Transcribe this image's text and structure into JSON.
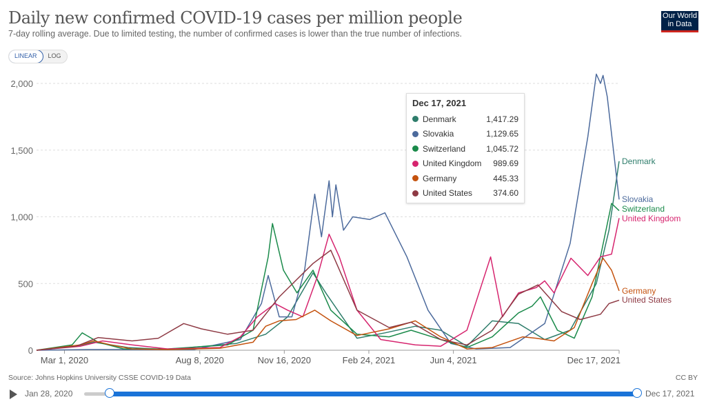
{
  "header": {
    "title": "Daily new confirmed COVID-19 cases per million people",
    "subtitle": "7-day rolling average. Due to limited testing, the number of confirmed cases is lower than the true number of infections.",
    "logo_line1": "Our World",
    "logo_line2": "in Data"
  },
  "scale_toggle": {
    "linear_label": "LINEAR",
    "log_label": "LOG",
    "selected": "LINEAR"
  },
  "tooltip": {
    "date": "Dec 17, 2021",
    "rows": [
      {
        "name": "Denmark",
        "value": "1,417.29",
        "color": "#2e7d6b"
      },
      {
        "name": "Slovakia",
        "value": "1,129.65",
        "color": "#4c6a9c"
      },
      {
        "name": "Switzerland",
        "value": "1,045.72",
        "color": "#1a8a4a"
      },
      {
        "name": "United Kingdom",
        "value": "989.69",
        "color": "#d6246e"
      },
      {
        "name": "Germany",
        "value": "445.33",
        "color": "#c4520e"
      },
      {
        "name": "United States",
        "value": "374.60",
        "color": "#8e3a44"
      }
    ]
  },
  "footer": {
    "source": "Source: Johns Hopkins University CSSE COVID-19 Data",
    "license": "CC BY"
  },
  "timeline": {
    "start_label": "Jan 28, 2020",
    "end_label": "Dec 17, 2021",
    "play_icon": "play-icon"
  },
  "chart_data": {
    "type": "line",
    "title": "Daily new confirmed COVID-19 cases per million people",
    "subtitle": "7-day rolling average. Due to limited testing, the number of confirmed cases is lower than the true number of infections.",
    "xlabel": "",
    "ylabel": "",
    "x_range": [
      "2020-01-28",
      "2021-12-17"
    ],
    "ylim": [
      0,
      2100
    ],
    "y_ticks": [
      0,
      500,
      1000,
      1500,
      2000
    ],
    "y_tick_labels": [
      "0",
      "500",
      "1,000",
      "1,500",
      "2,000"
    ],
    "x_ticks": [
      "2020-03-01",
      "2020-08-08",
      "2020-11-16",
      "2021-02-24",
      "2021-06-04",
      "2021-12-17"
    ],
    "x_tick_labels": [
      "Mar 1, 2020",
      "Aug 8, 2020",
      "Nov 16, 2020",
      "Feb 24, 2021",
      "Jun 4, 2021",
      "Dec 17, 2021"
    ],
    "grid": "horizontal-dashed",
    "legend": "right-end-labels",
    "series": [
      {
        "name": "Denmark",
        "color": "#2e7d6b",
        "points": [
          [
            "2020-01-28",
            0
          ],
          [
            "2020-03-15",
            30
          ],
          [
            "2020-04-05",
            60
          ],
          [
            "2020-05-15",
            20
          ],
          [
            "2020-07-01",
            5
          ],
          [
            "2020-09-20",
            50
          ],
          [
            "2020-10-25",
            120
          ],
          [
            "2020-11-20",
            250
          ],
          [
            "2020-12-20",
            580
          ],
          [
            "2021-01-05",
            420
          ],
          [
            "2021-02-10",
            90
          ],
          [
            "2021-03-15",
            130
          ],
          [
            "2021-04-20",
            180
          ],
          [
            "2021-05-20",
            150
          ],
          [
            "2021-06-20",
            30
          ],
          [
            "2021-07-20",
            220
          ],
          [
            "2021-08-20",
            200
          ],
          [
            "2021-09-20",
            80
          ],
          [
            "2021-10-20",
            150
          ],
          [
            "2021-11-20",
            500
          ],
          [
            "2021-12-05",
            900
          ],
          [
            "2021-12-17",
            1417
          ]
        ]
      },
      {
        "name": "Slovakia",
        "color": "#4c6a9c",
        "points": [
          [
            "2020-01-28",
            0
          ],
          [
            "2020-04-01",
            5
          ],
          [
            "2020-08-01",
            5
          ],
          [
            "2020-09-25",
            80
          ],
          [
            "2020-10-20",
            350
          ],
          [
            "2020-10-28",
            560
          ],
          [
            "2020-11-10",
            250
          ],
          [
            "2020-11-25",
            250
          ],
          [
            "2020-12-10",
            600
          ],
          [
            "2020-12-22",
            1170
          ],
          [
            "2020-12-30",
            850
          ],
          [
            "2021-01-08",
            1270
          ],
          [
            "2021-01-12",
            1000
          ],
          [
            "2021-01-16",
            1240
          ],
          [
            "2021-01-25",
            900
          ],
          [
            "2021-02-05",
            1000
          ],
          [
            "2021-02-25",
            980
          ],
          [
            "2021-03-15",
            1030
          ],
          [
            "2021-04-10",
            700
          ],
          [
            "2021-05-05",
            300
          ],
          [
            "2021-06-01",
            50
          ],
          [
            "2021-07-01",
            10
          ],
          [
            "2021-08-10",
            20
          ],
          [
            "2021-09-20",
            200
          ],
          [
            "2021-10-20",
            800
          ],
          [
            "2021-11-10",
            1600
          ],
          [
            "2021-11-20",
            2070
          ],
          [
            "2021-11-25",
            2000
          ],
          [
            "2021-11-28",
            2060
          ],
          [
            "2021-12-03",
            1900
          ],
          [
            "2021-12-17",
            1130
          ]
        ]
      },
      {
        "name": "Switzerland",
        "color": "#1a8a4a",
        "points": [
          [
            "2020-01-28",
            0
          ],
          [
            "2020-03-10",
            40
          ],
          [
            "2020-03-22",
            130
          ],
          [
            "2020-04-10",
            60
          ],
          [
            "2020-05-10",
            10
          ],
          [
            "2020-07-01",
            10
          ],
          [
            "2020-09-10",
            40
          ],
          [
            "2020-10-10",
            150
          ],
          [
            "2020-10-28",
            700
          ],
          [
            "2020-11-02",
            950
          ],
          [
            "2020-11-15",
            600
          ],
          [
            "2020-12-01",
            430
          ],
          [
            "2020-12-20",
            600
          ],
          [
            "2021-01-10",
            300
          ],
          [
            "2021-02-10",
            120
          ],
          [
            "2021-03-20",
            100
          ],
          [
            "2021-04-15",
            150
          ],
          [
            "2021-05-20",
            80
          ],
          [
            "2021-06-20",
            20
          ],
          [
            "2021-07-20",
            100
          ],
          [
            "2021-08-20",
            280
          ],
          [
            "2021-09-05",
            330
          ],
          [
            "2021-09-15",
            400
          ],
          [
            "2021-10-05",
            150
          ],
          [
            "2021-10-25",
            90
          ],
          [
            "2021-11-15",
            400
          ],
          [
            "2021-12-08",
            1100
          ],
          [
            "2021-12-17",
            1046
          ]
        ]
      },
      {
        "name": "United Kingdom",
        "color": "#d6246e",
        "points": [
          [
            "2020-01-28",
            0
          ],
          [
            "2020-03-20",
            30
          ],
          [
            "2020-04-15",
            70
          ],
          [
            "2020-05-20",
            40
          ],
          [
            "2020-07-01",
            10
          ],
          [
            "2020-09-01",
            20
          ],
          [
            "2020-09-25",
            100
          ],
          [
            "2020-10-15",
            250
          ],
          [
            "2020-11-05",
            350
          ],
          [
            "2020-11-20",
            300
          ],
          [
            "2020-12-08",
            250
          ],
          [
            "2020-12-25",
            550
          ],
          [
            "2021-01-08",
            870
          ],
          [
            "2021-01-20",
            700
          ],
          [
            "2021-02-10",
            300
          ],
          [
            "2021-03-10",
            80
          ],
          [
            "2021-04-20",
            40
          ],
          [
            "2021-05-20",
            30
          ],
          [
            "2021-06-20",
            150
          ],
          [
            "2021-07-18",
            700
          ],
          [
            "2021-08-01",
            250
          ],
          [
            "2021-08-20",
            430
          ],
          [
            "2021-09-10",
            470
          ],
          [
            "2021-09-20",
            520
          ],
          [
            "2021-10-01",
            430
          ],
          [
            "2021-10-21",
            690
          ],
          [
            "2021-11-10",
            560
          ],
          [
            "2021-11-25",
            700
          ],
          [
            "2021-12-08",
            720
          ],
          [
            "2021-12-17",
            990
          ]
        ]
      },
      {
        "name": "Germany",
        "color": "#c4520e",
        "points": [
          [
            "2020-01-28",
            0
          ],
          [
            "2020-03-20",
            40
          ],
          [
            "2020-04-05",
            70
          ],
          [
            "2020-04-25",
            40
          ],
          [
            "2020-05-20",
            10
          ],
          [
            "2020-07-01",
            5
          ],
          [
            "2020-09-01",
            15
          ],
          [
            "2020-10-10",
            60
          ],
          [
            "2020-10-25",
            180
          ],
          [
            "2020-11-10",
            220
          ],
          [
            "2020-11-30",
            230
          ],
          [
            "2020-12-22",
            300
          ],
          [
            "2021-01-10",
            220
          ],
          [
            "2021-02-10",
            110
          ],
          [
            "2021-03-20",
            160
          ],
          [
            "2021-04-20",
            220
          ],
          [
            "2021-05-20",
            100
          ],
          [
            "2021-06-20",
            10
          ],
          [
            "2021-07-20",
            20
          ],
          [
            "2021-08-25",
            100
          ],
          [
            "2021-09-10",
            90
          ],
          [
            "2021-10-01",
            70
          ],
          [
            "2021-10-25",
            170
          ],
          [
            "2021-11-15",
            500
          ],
          [
            "2021-11-28",
            690
          ],
          [
            "2021-12-08",
            600
          ],
          [
            "2021-12-17",
            445
          ]
        ]
      },
      {
        "name": "United States",
        "color": "#8e3a44",
        "points": [
          [
            "2020-01-28",
            0
          ],
          [
            "2020-03-15",
            30
          ],
          [
            "2020-04-10",
            95
          ],
          [
            "2020-05-20",
            70
          ],
          [
            "2020-06-20",
            90
          ],
          [
            "2020-07-20",
            200
          ],
          [
            "2020-08-10",
            160
          ],
          [
            "2020-09-10",
            120
          ],
          [
            "2020-10-10",
            150
          ],
          [
            "2020-11-10",
            400
          ],
          [
            "2020-12-20",
            650
          ],
          [
            "2021-01-10",
            750
          ],
          [
            "2021-02-10",
            300
          ],
          [
            "2021-03-20",
            170
          ],
          [
            "2021-04-15",
            210
          ],
          [
            "2021-05-20",
            80
          ],
          [
            "2021-06-20",
            40
          ],
          [
            "2021-07-20",
            150
          ],
          [
            "2021-08-20",
            420
          ],
          [
            "2021-09-12",
            490
          ],
          [
            "2021-10-10",
            290
          ],
          [
            "2021-11-01",
            230
          ],
          [
            "2021-11-25",
            270
          ],
          [
            "2021-12-05",
            350
          ],
          [
            "2021-12-17",
            375
          ]
        ]
      }
    ],
    "end_labels": [
      "Denmark",
      "Slovakia",
      "Switzerland",
      "United Kingdom",
      "Germany",
      "United States"
    ],
    "hover_date": "2021-12-17"
  }
}
